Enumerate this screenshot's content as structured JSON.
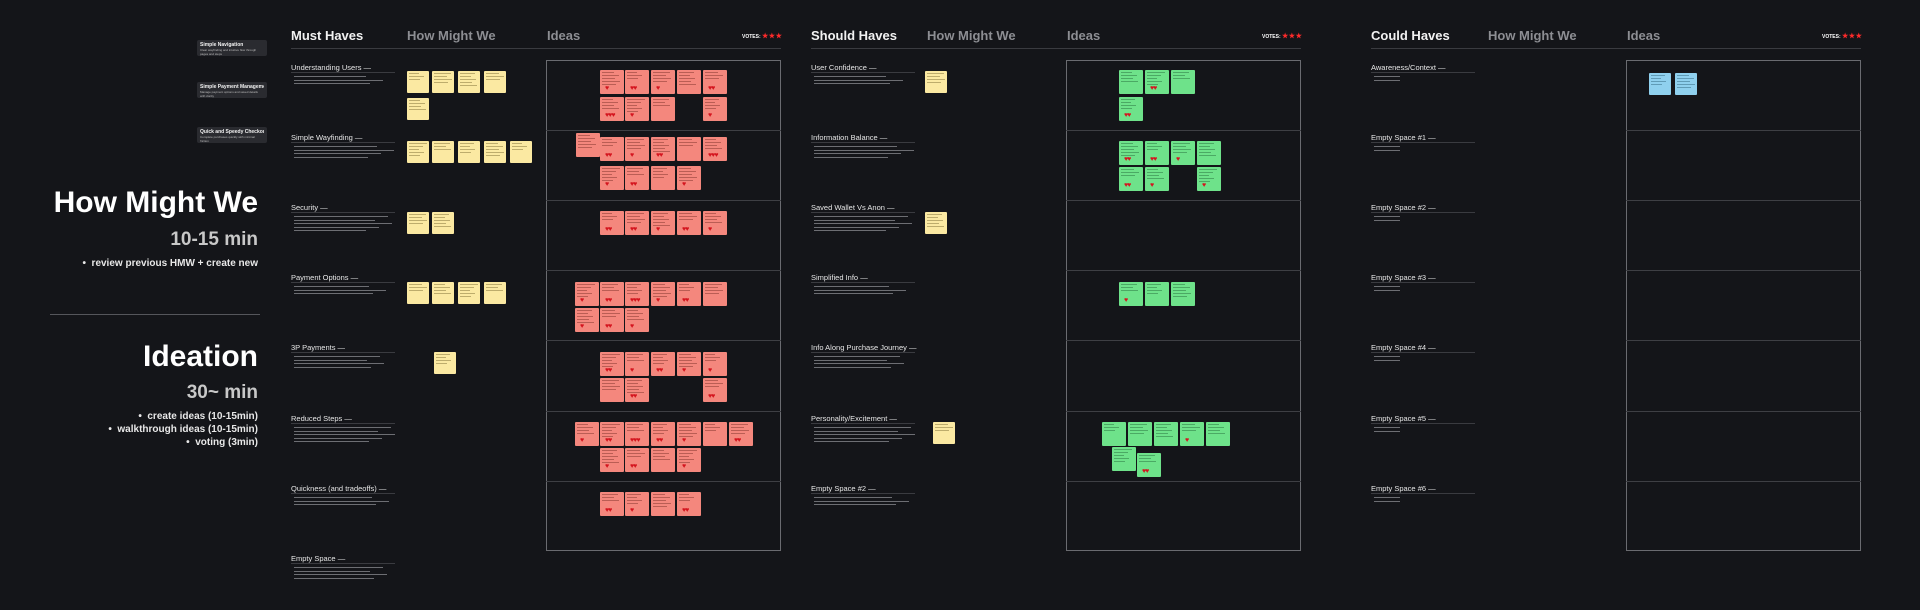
{
  "left_panel": {
    "cards": [
      {
        "title": "Simple Navigation",
        "desc": "Clear wayfinding and intuitive flow through pages and steps"
      },
      {
        "title": "Simple Payment Management",
        "desc": "Manage payment options and saved details with clarity"
      },
      {
        "title": "Quick and Speedy Checkout",
        "desc": "Complete purchases quickly with minimal friction"
      }
    ],
    "hmw_title": "How Might We",
    "hmw_duration": "10-15 min",
    "hmw_bullets": [
      "review previous HMW + create new"
    ],
    "ideation_title": "Ideation",
    "ideation_duration": "30~ min",
    "ideation_bullets": [
      "create ideas (10-15min)",
      "walkthrough ideas (10-15min)",
      "voting (3min)"
    ]
  },
  "votes_label": "VOTES:",
  "votes_stars": "★★★",
  "boards": [
    {
      "title": "Must Haves",
      "col_hmw": "How Might We",
      "col_ideas": "Ideas",
      "rows": [
        "Understanding Users —",
        "Simple Wayfinding —",
        "Security —",
        "Payment Options —",
        "3P Payments —",
        "Reduced Steps —",
        "Quickness (and tradeoffs) —",
        "Empty Space —"
      ]
    },
    {
      "title": "Should Haves",
      "col_hmw": "How Might We",
      "col_ideas": "Ideas",
      "rows": [
        "User Confidence —",
        "Information Balance —",
        "Saved Wallet Vs Anon —",
        "Simplified Info —",
        "Info Along Purchase Journey —",
        "Personality/Excitement —",
        "Empty Space #2 —"
      ]
    },
    {
      "title": "Could Haves",
      "col_hmw": "How Might We",
      "col_ideas": "Ideas",
      "rows": [
        "Awareness/Context —",
        "Empty Space #1 —",
        "Empty Space #2 —",
        "Empty Space #3 —",
        "Empty Space #4 —",
        "Empty Space #5 —",
        "Empty Space #6 —"
      ]
    }
  ],
  "colors": {
    "background": "#141519",
    "hmw_note": "#fbe9a2",
    "must_idea_note": "#f4877d",
    "should_idea_note": "#6ee28a",
    "could_idea_note": "#8fd0ee",
    "vote_heart": "#d4141e",
    "vote_star": "#ff2a2a"
  }
}
